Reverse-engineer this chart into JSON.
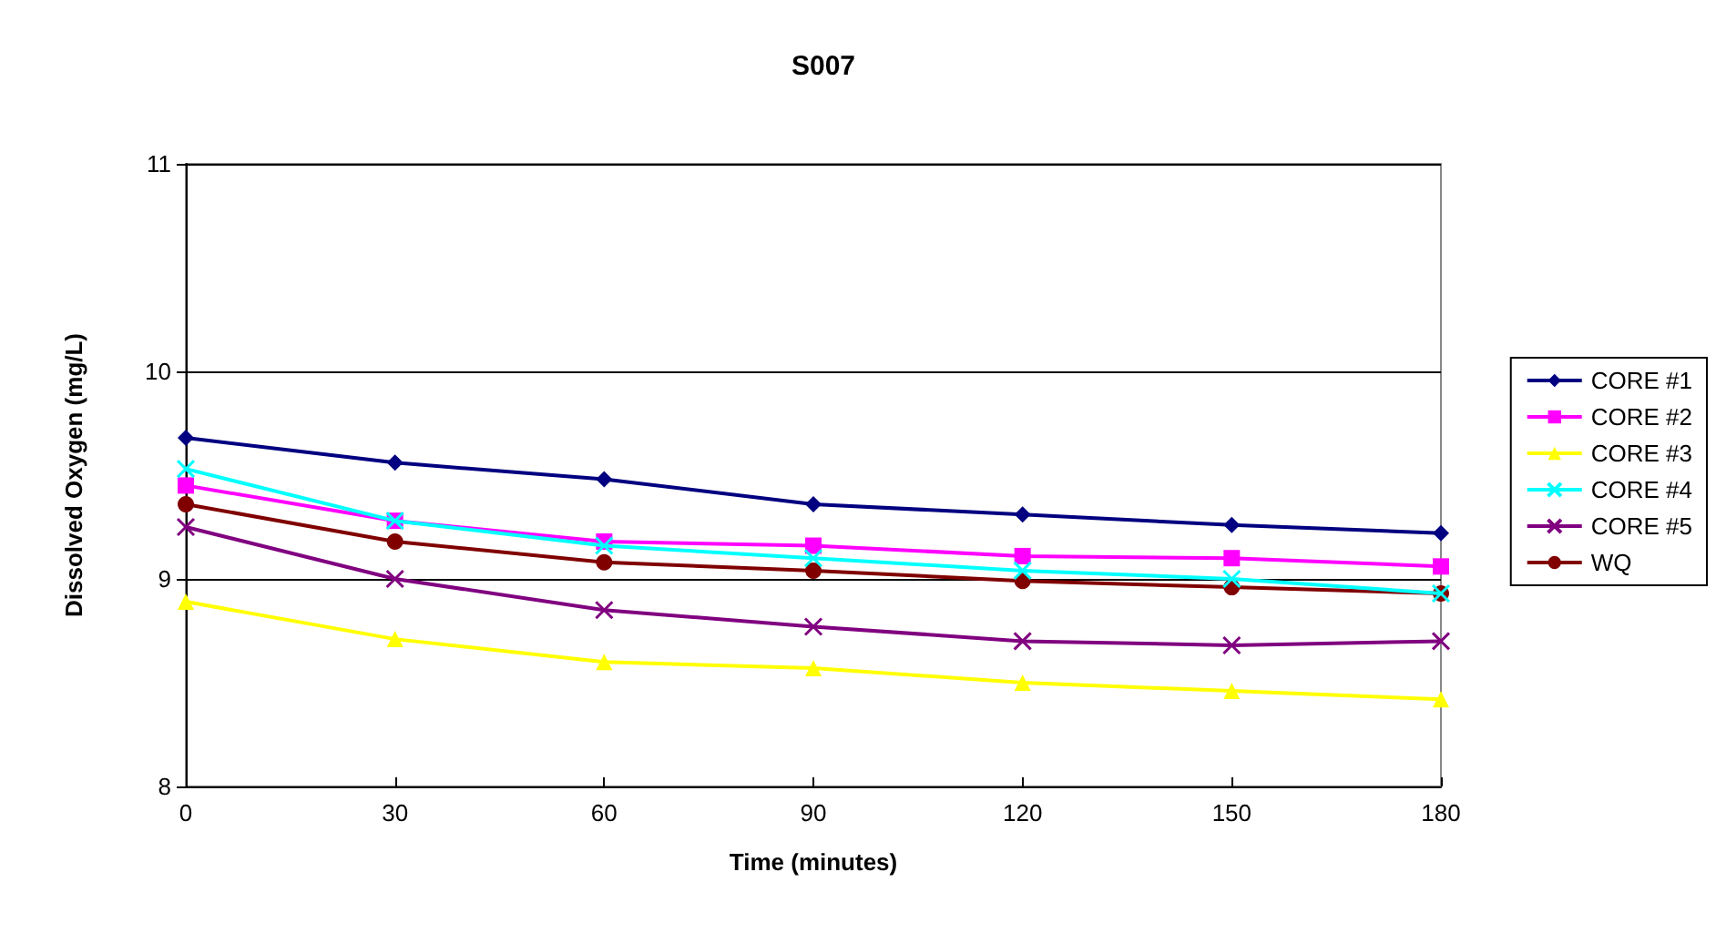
{
  "chart_data": {
    "type": "line",
    "title": "S007",
    "xlabel": "Time (minutes)",
    "ylabel": "Dissolved Oxygen (mg/L)",
    "x": [
      0,
      30,
      60,
      90,
      120,
      150,
      180
    ],
    "xlim": [
      0,
      180
    ],
    "xticks": [
      0,
      30,
      60,
      90,
      120,
      150,
      180
    ],
    "ylim": [
      8,
      11
    ],
    "yticks": [
      8,
      9,
      10,
      11
    ],
    "grid": "y",
    "legend": "right",
    "line_style": "solid",
    "series": [
      {
        "name": "CORE #1",
        "color": "#000080",
        "marker": "diamond",
        "values": [
          9.68,
          9.56,
          9.48,
          9.36,
          9.31,
          9.26,
          9.22
        ]
      },
      {
        "name": "CORE #2",
        "color": "#ff00ff",
        "marker": "square",
        "values": [
          9.45,
          9.28,
          9.18,
          9.16,
          9.11,
          9.1,
          9.06
        ]
      },
      {
        "name": "CORE #3",
        "color": "#ffff00",
        "marker": "triangle",
        "values": [
          8.89,
          8.71,
          8.6,
          8.57,
          8.5,
          8.46,
          8.42
        ]
      },
      {
        "name": "CORE #4",
        "color": "#00ffff",
        "marker": "cross",
        "values": [
          9.53,
          9.28,
          9.16,
          9.1,
          9.04,
          9.0,
          8.93
        ]
      },
      {
        "name": "CORE #5",
        "color": "#800080",
        "marker": "cross",
        "values": [
          9.25,
          9.0,
          8.85,
          8.77,
          8.7,
          8.68,
          8.7
        ]
      },
      {
        "name": "WQ",
        "color": "#800000",
        "marker": "circle",
        "values": [
          9.36,
          9.18,
          9.08,
          9.04,
          8.99,
          8.96,
          8.93
        ]
      }
    ]
  }
}
